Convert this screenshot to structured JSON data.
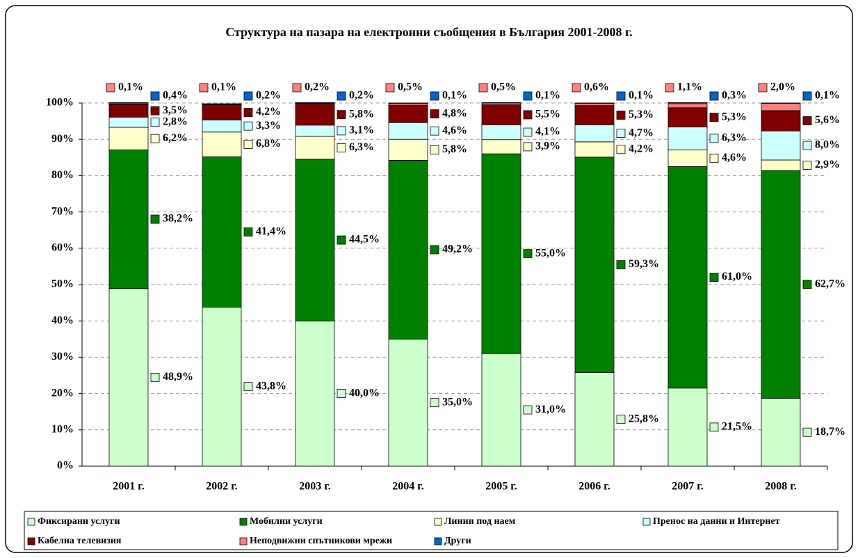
{
  "chart_data": {
    "type": "stacked_bar",
    "title": "Структура на пазара на електронни съобщения в България 2001-2008 г.",
    "categories": [
      "2001 г.",
      "2002 г.",
      "2003 г.",
      "2004 г.",
      "2005 г.",
      "2006 г.",
      "2007 г.",
      "2008 г."
    ],
    "series": [
      {
        "name": "Фиксирани услуги",
        "color": "#ccffcc",
        "values": [
          48.9,
          43.8,
          40.0,
          35.0,
          31.0,
          25.8,
          21.5,
          18.7
        ],
        "value_labels": [
          "48,9%",
          "43,8%",
          "40,0%",
          "35,0%",
          "31,0%",
          "25,8%",
          "21,5%",
          "18,7%"
        ]
      },
      {
        "name": "Мобилни услуги",
        "color": "#008000",
        "values": [
          38.2,
          41.4,
          44.5,
          49.2,
          55.0,
          59.3,
          61.0,
          62.7
        ],
        "value_labels": [
          "38,2%",
          "41,4%",
          "44,5%",
          "49,2%",
          "55,0%",
          "59,3%",
          "61,0%",
          "62,7%"
        ]
      },
      {
        "name": "Линии под наем",
        "color": "#ffffcc",
        "values": [
          6.2,
          6.8,
          6.3,
          5.8,
          3.9,
          4.2,
          4.6,
          2.9
        ],
        "value_labels": [
          "6,2%",
          "6,8%",
          "6,3%",
          "5,8%",
          "3,9%",
          "4,2%",
          "4,6%",
          "2,9%"
        ]
      },
      {
        "name": "Пренос на данни и Интернет",
        "color": "#ccffff",
        "values": [
          2.8,
          3.3,
          3.1,
          4.6,
          4.1,
          4.7,
          6.3,
          8.0
        ],
        "value_labels": [
          "2,8%",
          "3,3%",
          "3,1%",
          "4,6%",
          "4,1%",
          "4,7%",
          "6,3%",
          "8,0%"
        ]
      },
      {
        "name": "Кабелна телевизия",
        "color": "#800000",
        "values": [
          3.5,
          4.2,
          5.8,
          4.8,
          5.5,
          5.3,
          5.3,
          5.6
        ],
        "value_labels": [
          "3,5%",
          "4,2%",
          "5,8%",
          "4,8%",
          "5,5%",
          "5,3%",
          "5,3%",
          "5,6%"
        ]
      },
      {
        "name": "Неподвижни спътникови мрежи",
        "color": "#ff8080",
        "values": [
          0.1,
          0.1,
          0.2,
          0.5,
          0.5,
          0.6,
          1.1,
          2.0
        ],
        "value_labels": [
          "0,1%",
          "0,1%",
          "0,2%",
          "0,5%",
          "0,5%",
          "0,6%",
          "1,1%",
          "2,0%"
        ]
      },
      {
        "name": "Други",
        "color": "#0066cc",
        "values": [
          0.4,
          0.2,
          0.2,
          0.1,
          0.1,
          0.1,
          0.3,
          0.1
        ],
        "value_labels": [
          "0,4%",
          "0,2%",
          "0,2%",
          "0,1%",
          "0,1%",
          "0,1%",
          "0,3%",
          "0,1%"
        ]
      }
    ],
    "ylim": [
      0,
      100
    ],
    "yticks": [
      {
        "value": 0,
        "label": "0%"
      },
      {
        "value": 10,
        "label": "10%"
      },
      {
        "value": 20,
        "label": "20%"
      },
      {
        "value": 30,
        "label": "30%"
      },
      {
        "value": 40,
        "label": "40%"
      },
      {
        "value": 50,
        "label": "50%"
      },
      {
        "value": 60,
        "label": "60%"
      },
      {
        "value": 70,
        "label": "70%"
      },
      {
        "value": 80,
        "label": "80%"
      },
      {
        "value": 90,
        "label": "90%"
      },
      {
        "value": 100,
        "label": "100%"
      }
    ],
    "grid": true,
    "legend": "bottom"
  }
}
